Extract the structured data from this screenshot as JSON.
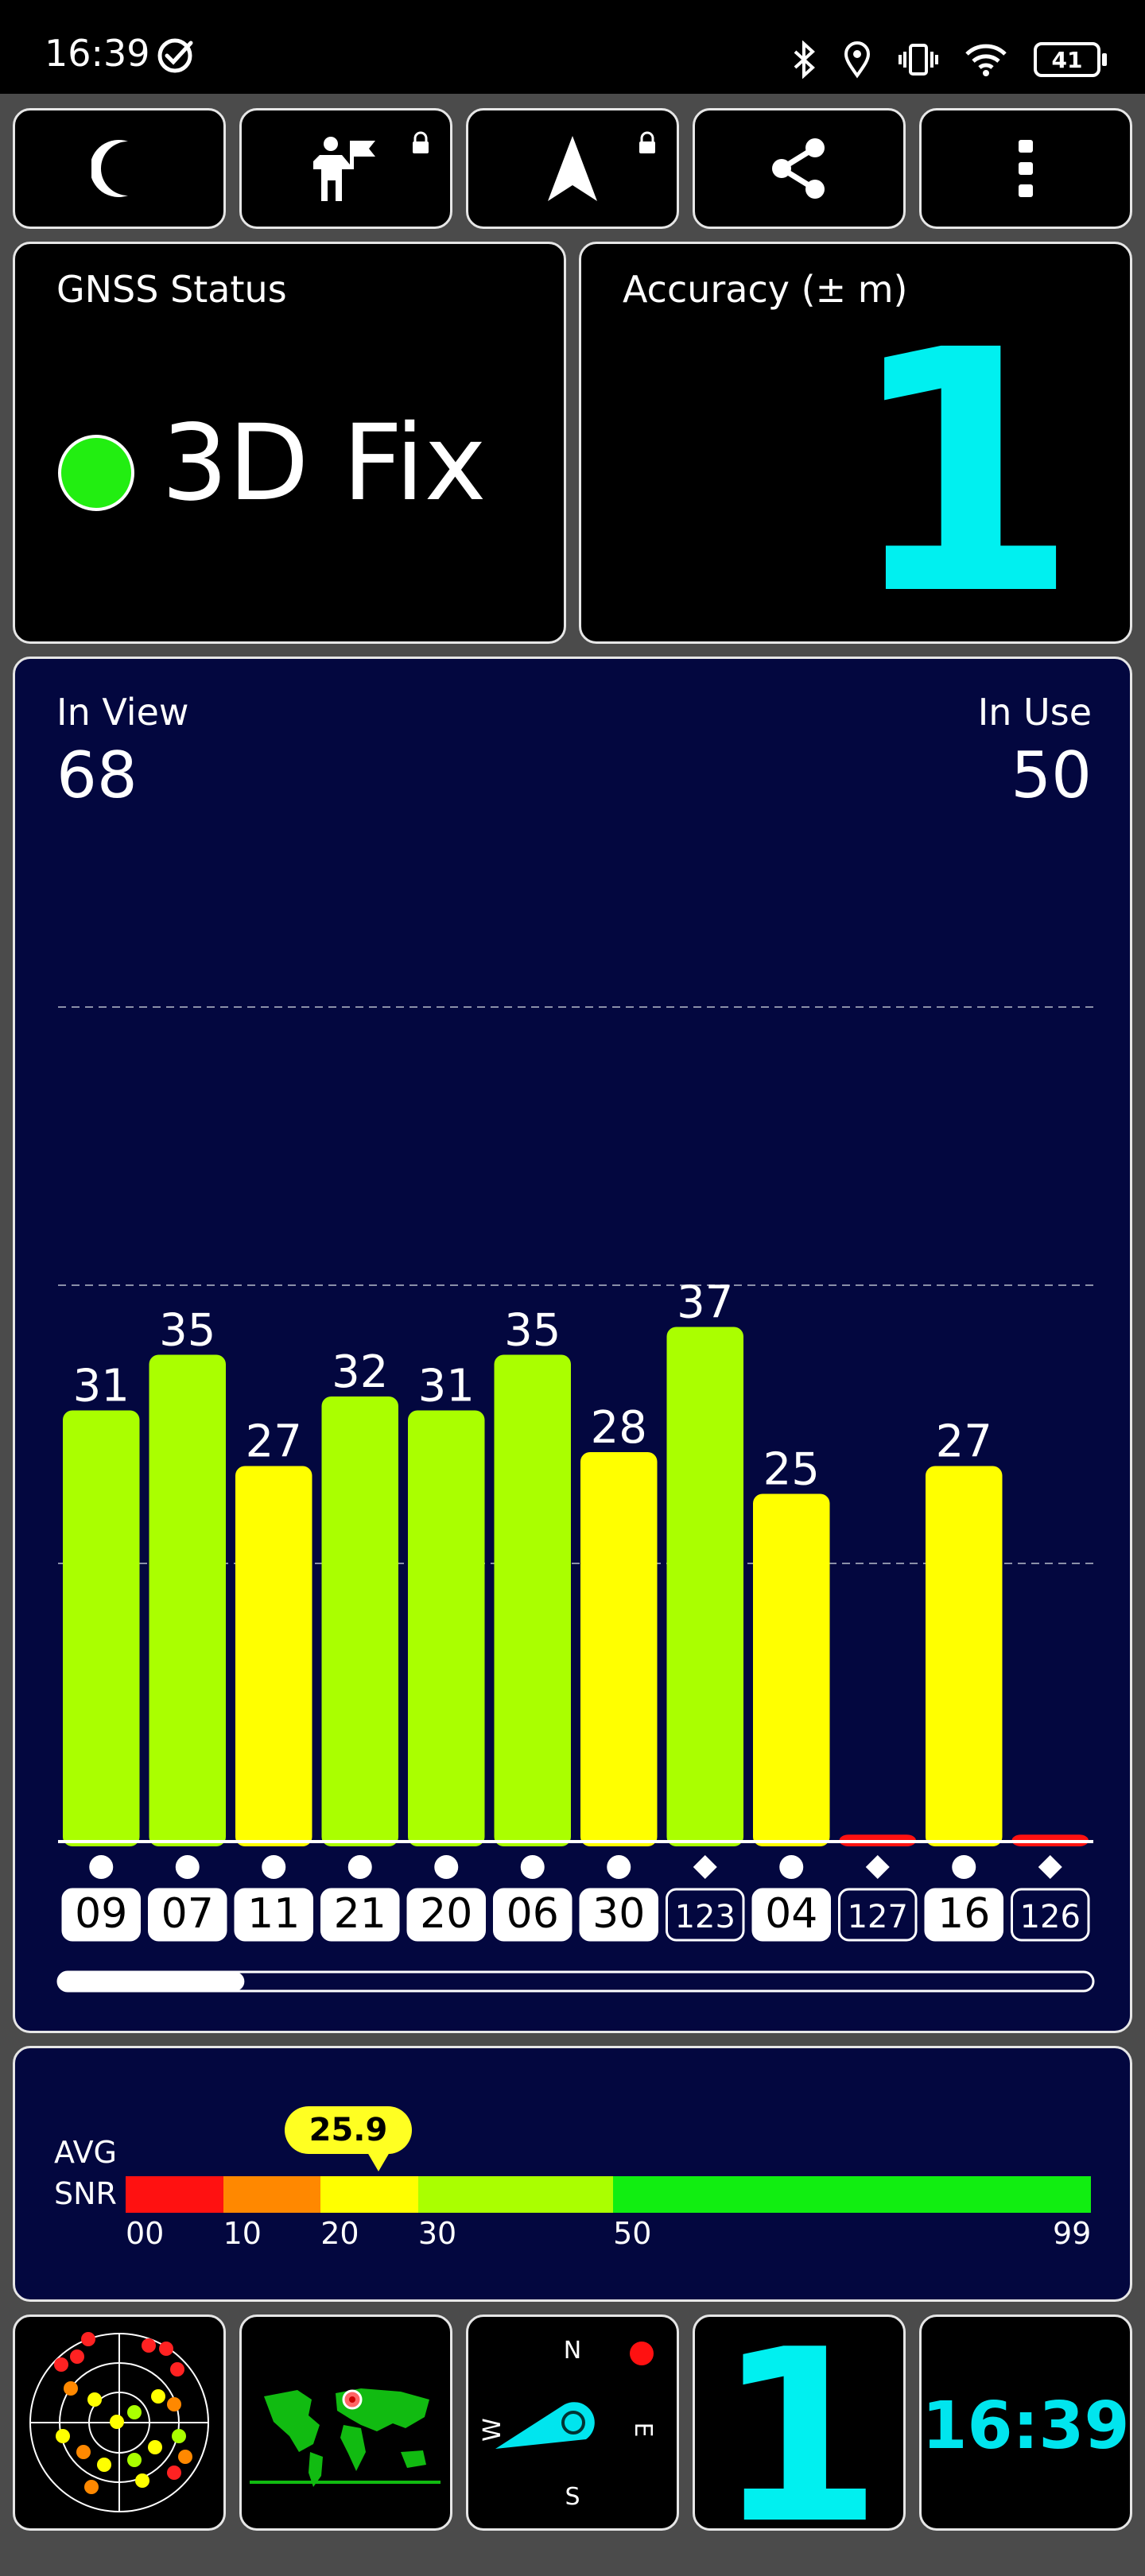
{
  "status_bar": {
    "time": "16:39",
    "battery": "41",
    "icons": [
      "check-circle-icon",
      "bluetooth-icon",
      "location-pin-icon",
      "vibrate-icon",
      "wifi-icon",
      "battery-icon"
    ]
  },
  "toolbar": {
    "buttons": [
      "moon-icon",
      "person-flag-icon",
      "navigation-arrow-icon",
      "share-icon",
      "more-vert-icon"
    ],
    "locked": [
      "person-flag-icon",
      "navigation-arrow-icon"
    ]
  },
  "gnss": {
    "label": "GNSS Status",
    "value": "3D Fix",
    "color": "#22ee11"
  },
  "accuracy": {
    "label": "Accuracy (± m)",
    "value": "1",
    "color": "#00f0f0"
  },
  "chart_data": {
    "type": "bar",
    "in_view_label": "In View",
    "in_view": "68",
    "in_use_label": "In Use",
    "in_use": "50",
    "ylim": [
      0,
      80
    ],
    "grid": true,
    "bars": [
      {
        "id": "09",
        "snr": 31,
        "label": "31",
        "shape": "circle",
        "highlight": true
      },
      {
        "id": "07",
        "snr": 35,
        "label": "35",
        "shape": "circle",
        "highlight": true
      },
      {
        "id": "11",
        "snr": 27,
        "label": "27",
        "shape": "circle",
        "highlight": true
      },
      {
        "id": "21",
        "snr": 32,
        "label": "32",
        "shape": "circle",
        "highlight": true
      },
      {
        "id": "20",
        "snr": 31,
        "label": "31",
        "shape": "circle",
        "highlight": true
      },
      {
        "id": "06",
        "snr": 35,
        "label": "35",
        "shape": "circle",
        "highlight": true
      },
      {
        "id": "30",
        "snr": 28,
        "label": "28",
        "shape": "circle",
        "highlight": true
      },
      {
        "id": "123",
        "snr": 37,
        "label": "37",
        "shape": "diamond",
        "highlight": false
      },
      {
        "id": "04",
        "snr": 25,
        "label": "25",
        "shape": "circle",
        "highlight": true
      },
      {
        "id": "127",
        "snr": 0.5,
        "label": "",
        "shape": "diamond",
        "highlight": false
      },
      {
        "id": "16",
        "snr": 27,
        "label": "27",
        "shape": "circle",
        "highlight": true
      },
      {
        "id": "126",
        "snr": 0.5,
        "label": "",
        "shape": "diamond",
        "highlight": false
      }
    ],
    "scroll_fraction": 0.18
  },
  "avg_snr": {
    "label_line1": "AVG",
    "label_line2": "SNR",
    "value": "25.9",
    "ticks": [
      "00",
      "10",
      "20",
      "30",
      "50",
      "99"
    ],
    "colors": [
      "#ff1111",
      "#ff8800",
      "#ffff00",
      "#aaff00",
      "#11ee11"
    ]
  },
  "bottom": {
    "compass": {
      "n": "N",
      "s": "S",
      "e": "E",
      "w": "W"
    },
    "accuracy_value": "1",
    "clock": "16:39",
    "icons": [
      "sky-plot-icon",
      "world-map-icon",
      "compass-icon"
    ]
  }
}
